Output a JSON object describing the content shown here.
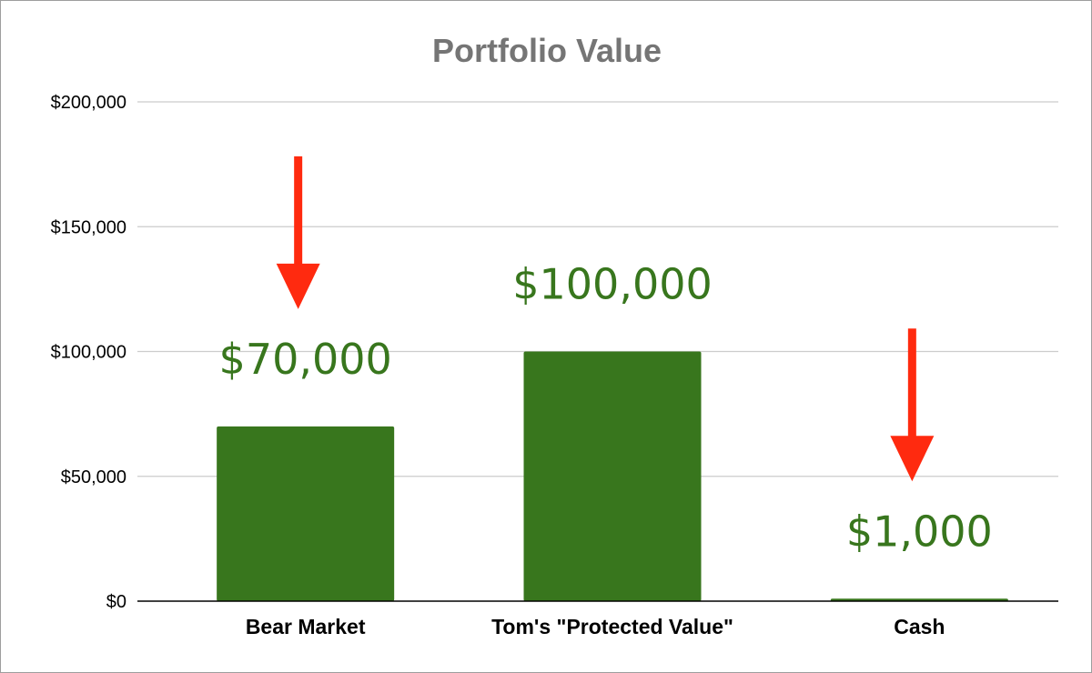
{
  "chart_data": {
    "type": "bar",
    "title": "Portfolio Value",
    "categories": [
      "Bear Market",
      "Tom's \"Protected Value\"",
      "Cash"
    ],
    "values": [
      70000,
      100000,
      1000
    ],
    "data_labels": [
      "$70,000",
      "$100,000",
      "$1,000"
    ],
    "y_ticks": [
      {
        "value": 0,
        "label": "$0"
      },
      {
        "value": 50000,
        "label": "$50,000"
      },
      {
        "value": 100000,
        "label": "$100,000"
      },
      {
        "value": 150000,
        "label": "$150,000"
      },
      {
        "value": 200000,
        "label": "$200,000"
      }
    ],
    "ylim": [
      0,
      200000
    ],
    "xlabel": "",
    "ylabel": "",
    "grid": true,
    "legend": "none",
    "annotations": [
      {
        "type": "arrow",
        "direction": "down",
        "category": "Bear Market"
      },
      {
        "type": "arrow",
        "direction": "down",
        "category": "Cash"
      }
    ]
  },
  "colors": {
    "bar": "#38761d",
    "data_label": "#38761d",
    "title": "#757575",
    "gridline": "#cccccc",
    "axis": "#000000",
    "arrow": "#ff2a0f"
  }
}
